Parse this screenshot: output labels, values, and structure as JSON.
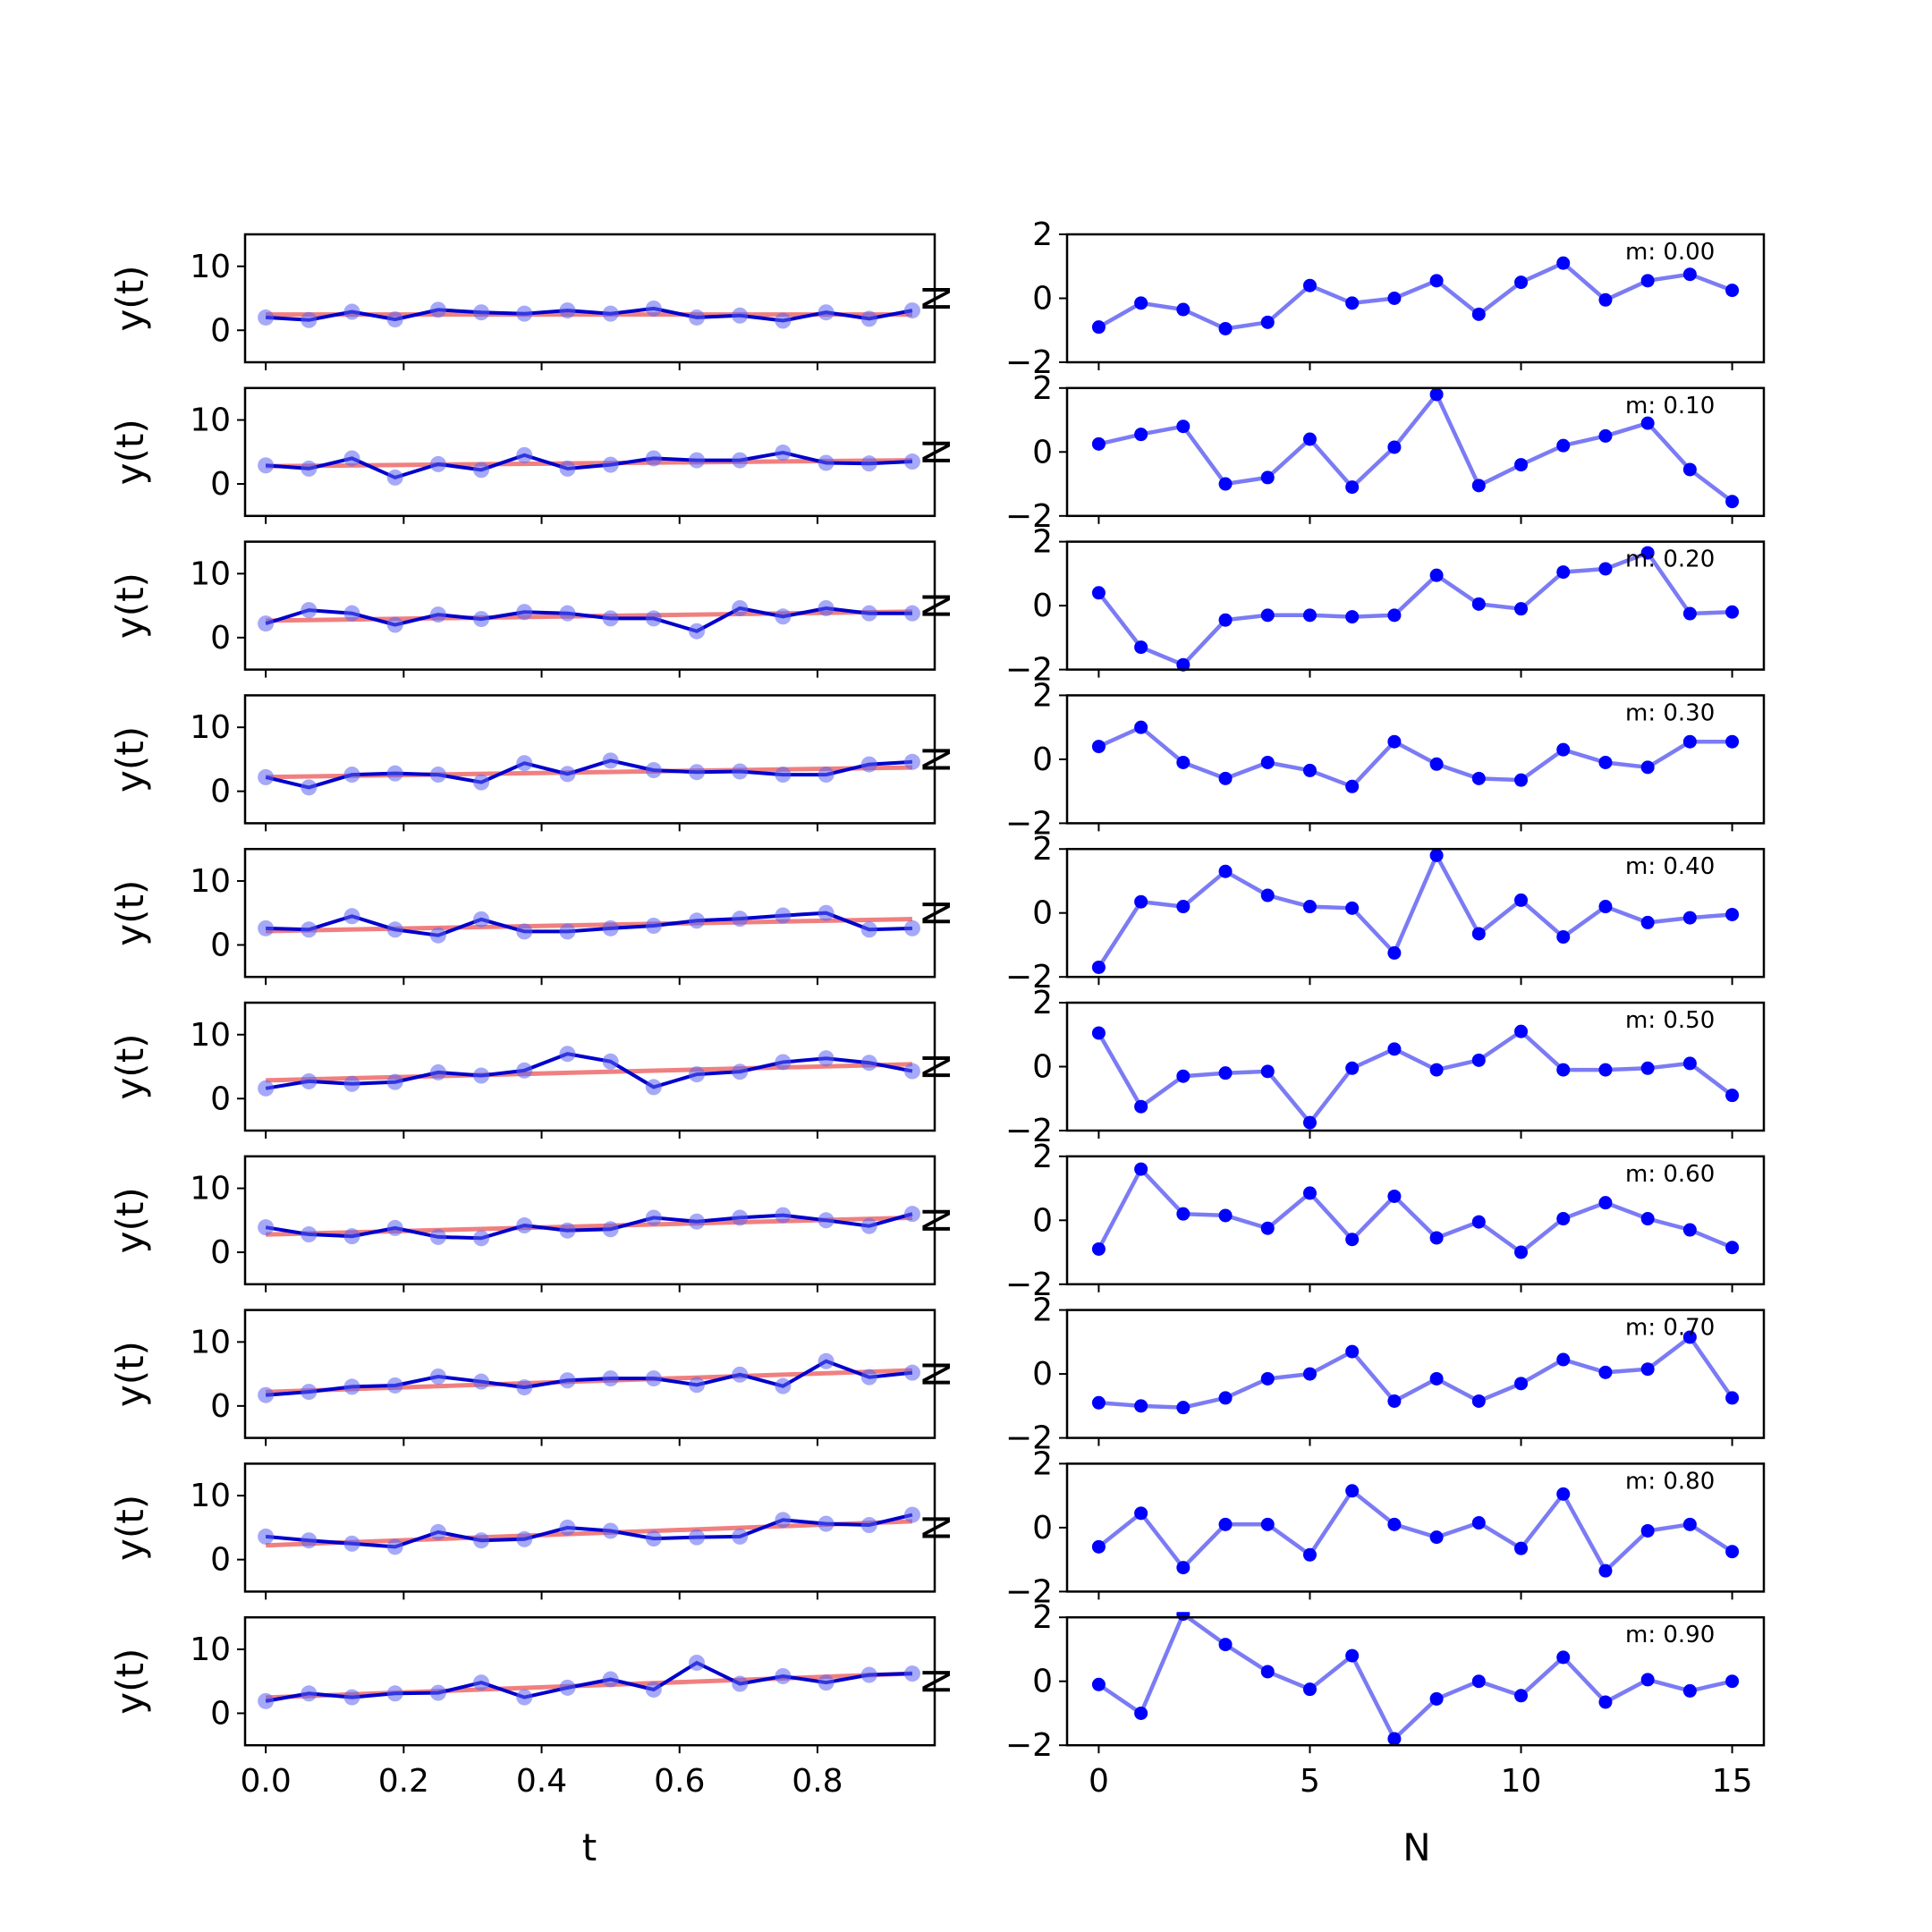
{
  "chart_data": {
    "type": "line",
    "layout": "10 rows x 2 columns of subplots",
    "t": [
      0.0,
      0.0625,
      0.125,
      0.1875,
      0.25,
      0.3125,
      0.375,
      0.4375,
      0.5,
      0.5625,
      0.625,
      0.6875,
      0.75,
      0.8125,
      0.875,
      0.9375
    ],
    "N": [
      0,
      1,
      2,
      3,
      4,
      5,
      6,
      7,
      8,
      9,
      10,
      11,
      12,
      13,
      14,
      15
    ],
    "left": {
      "ylabel": "y(t)",
      "xlabel": "t",
      "ylim": [
        -5,
        15
      ],
      "xlim": [
        -0.03,
        0.97
      ],
      "yticks": [
        "10",
        "0"
      ],
      "ytick_values": [
        10,
        0
      ],
      "xticks": [
        "0.0",
        "0.2",
        "0.4",
        "0.6",
        "0.8"
      ],
      "xtick_values": [
        0.0,
        0.2,
        0.4,
        0.6,
        0.8
      ],
      "series_colors": {
        "data": "#0000cc",
        "points": "#5b63f2",
        "fit": "#f08080"
      }
    },
    "right": {
      "ylabel": "N",
      "xlabel": "N",
      "ylim": [
        -2,
        2
      ],
      "xlim": [
        -0.75,
        15.75
      ],
      "yticks": [
        "2",
        "0",
        "−2"
      ],
      "ytick_values": [
        2,
        0,
        -2
      ],
      "xticks": [
        "0",
        "5",
        "10",
        "15"
      ],
      "xtick_values": [
        0,
        5,
        10,
        15
      ],
      "series_colors": {
        "line": "#7b7bf5",
        "points": "#0000ff"
      }
    },
    "panels": [
      {
        "m": "m: 0.00",
        "slope": 0.0,
        "y": [
          2.0,
          1.6,
          2.9,
          1.7,
          3.2,
          2.8,
          2.6,
          3.1,
          2.6,
          3.4,
          2.0,
          2.3,
          1.5,
          2.8,
          1.8,
          3.1
        ],
        "resid": [
          -0.9,
          -0.15,
          -0.35,
          -0.95,
          -0.75,
          0.4,
          -0.15,
          0.0,
          0.55,
          -0.5,
          0.5,
          1.1,
          -0.05,
          0.55,
          0.75,
          0.25
        ]
      },
      {
        "m": "m: 0.10",
        "slope": 1.0,
        "y": [
          2.9,
          2.4,
          4.0,
          1.0,
          3.1,
          2.2,
          4.5,
          2.4,
          3.0,
          4.0,
          3.7,
          3.7,
          4.9,
          3.3,
          3.2,
          3.5
        ],
        "resid": [
          0.25,
          0.55,
          0.8,
          -1.0,
          -0.8,
          0.4,
          -1.1,
          0.15,
          1.8,
          -1.05,
          -0.4,
          0.2,
          0.5,
          0.9,
          -0.55,
          -1.55
        ]
      },
      {
        "m": "m: 0.20",
        "slope": 1.5,
        "y": [
          2.2,
          4.3,
          3.8,
          2.0,
          3.6,
          2.9,
          4.0,
          3.8,
          3.0,
          3.0,
          1.0,
          4.6,
          3.3,
          4.6,
          3.8,
          3.8
        ],
        "resid": [
          0.4,
          -1.3,
          -1.85,
          -0.45,
          -0.3,
          -0.3,
          -0.35,
          -0.3,
          0.95,
          0.05,
          -0.1,
          1.05,
          1.15,
          1.65,
          -0.25,
          -0.2
        ]
      },
      {
        "m": "m: 0.30",
        "slope": 1.6,
        "y": [
          2.2,
          0.6,
          2.6,
          2.8,
          2.6,
          1.4,
          4.4,
          2.7,
          4.8,
          3.3,
          3.0,
          3.1,
          2.6,
          2.6,
          4.2,
          4.6
        ],
        "resid": [
          0.4,
          1.0,
          -0.1,
          -0.6,
          -0.1,
          -0.35,
          -0.85,
          0.55,
          -0.15,
          -0.6,
          -0.65,
          0.3,
          -0.1,
          -0.25,
          0.55,
          0.55
        ]
      },
      {
        "m": "m: 0.40",
        "slope": 2.0,
        "y": [
          2.6,
          2.4,
          4.5,
          2.4,
          1.5,
          4.0,
          2.1,
          2.1,
          2.6,
          3.0,
          3.8,
          4.1,
          4.6,
          5.0,
          2.4,
          2.6
        ],
        "resid": [
          -1.7,
          0.35,
          0.2,
          1.3,
          0.55,
          0.2,
          0.15,
          -1.25,
          1.8,
          -0.65,
          0.4,
          -0.75,
          0.2,
          -0.3,
          -0.15,
          -0.05
        ]
      },
      {
        "m": "m: 0.50",
        "slope": 2.7,
        "y": [
          1.6,
          2.7,
          2.3,
          2.6,
          4.1,
          3.6,
          4.4,
          7.0,
          5.8,
          1.8,
          3.8,
          4.2,
          5.7,
          6.3,
          5.6,
          4.3
        ],
        "resid": [
          1.05,
          -1.25,
          -0.3,
          -0.2,
          -0.15,
          -1.75,
          -0.05,
          0.55,
          -0.1,
          0.2,
          1.1,
          -0.1,
          -0.1,
          -0.05,
          0.1,
          -0.9
        ]
      },
      {
        "m": "m: 0.60",
        "slope": 2.8,
        "y": [
          3.9,
          2.8,
          2.5,
          3.8,
          2.4,
          2.2,
          4.2,
          3.4,
          3.6,
          5.4,
          4.8,
          5.4,
          5.8,
          5.0,
          4.1,
          6.0
        ],
        "resid": [
          -0.9,
          1.6,
          0.2,
          0.15,
          -0.25,
          0.85,
          -0.6,
          0.75,
          -0.55,
          -0.05,
          -1.0,
          0.05,
          0.55,
          0.05,
          -0.3,
          -0.85
        ]
      },
      {
        "m": "m: 0.70",
        "slope": 3.6,
        "y": [
          1.7,
          2.2,
          3.0,
          3.2,
          4.6,
          3.8,
          2.9,
          4.0,
          4.3,
          4.3,
          3.3,
          4.9,
          3.1,
          7.0,
          4.5,
          5.2
        ],
        "resid": [
          -0.9,
          -1.0,
          -1.05,
          -0.75,
          -0.15,
          0.0,
          0.7,
          -0.85,
          -0.15,
          -0.85,
          -0.3,
          0.45,
          0.05,
          0.15,
          1.15,
          -0.75
        ]
      },
      {
        "m": "m: 0.80",
        "slope": 4.0,
        "y": [
          3.6,
          3.0,
          2.5,
          2.0,
          4.3,
          3.0,
          3.2,
          5.0,
          4.5,
          3.3,
          3.5,
          3.6,
          6.2,
          5.6,
          5.4,
          7.0
        ],
        "resid": [
          -0.6,
          0.45,
          -1.25,
          0.1,
          0.1,
          -0.85,
          1.15,
          0.1,
          -0.3,
          0.15,
          -0.65,
          1.05,
          -1.35,
          -0.1,
          0.1,
          -0.75
        ]
      },
      {
        "m": "m: 0.90",
        "slope": 4.0,
        "y": [
          1.9,
          3.1,
          2.5,
          3.1,
          3.2,
          4.8,
          2.5,
          4.0,
          5.3,
          3.7,
          7.9,
          4.6,
          5.8,
          4.8,
          6.0,
          6.2
        ],
        "resid": [
          -0.1,
          -1.0,
          2.1,
          1.15,
          0.3,
          -0.25,
          0.8,
          -1.8,
          -0.55,
          0.0,
          -0.45,
          0.75,
          -0.65,
          0.05,
          -0.3,
          0.0
        ]
      }
    ]
  }
}
